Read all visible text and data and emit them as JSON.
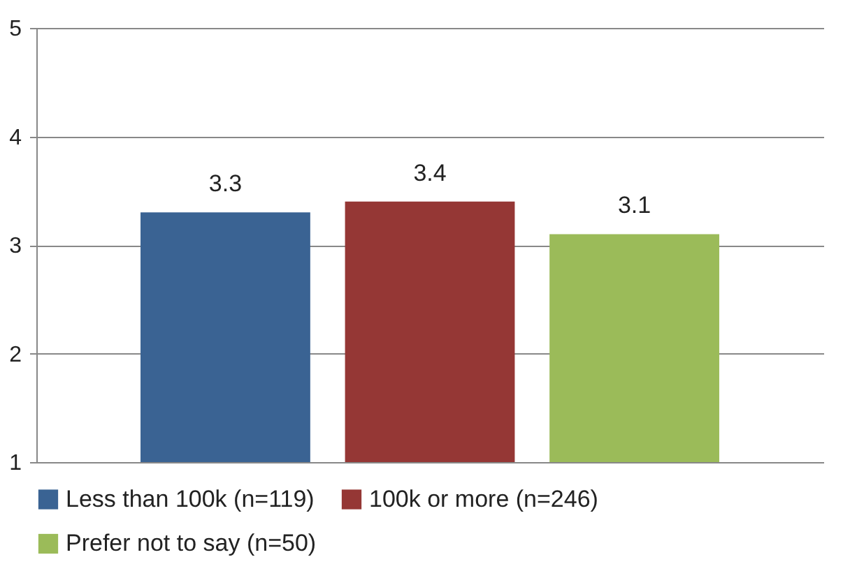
{
  "chart_data": {
    "type": "bar",
    "categories": [
      null
    ],
    "series": [
      {
        "name": "Less than 100k (n=119)",
        "color": "#3a6393",
        "values": [
          3.3
        ]
      },
      {
        "name": "100k or more (n=246)",
        "color": "#953735",
        "values": [
          3.4
        ]
      },
      {
        "name": "Prefer not to say (n=50)",
        "color": "#9bbb59",
        "values": [
          3.1
        ]
      }
    ],
    "ylim": [
      1,
      5
    ],
    "yticks": [
      1,
      2,
      3,
      4,
      5
    ],
    "grid": "y",
    "legend": "bottom",
    "data_labels": true
  }
}
